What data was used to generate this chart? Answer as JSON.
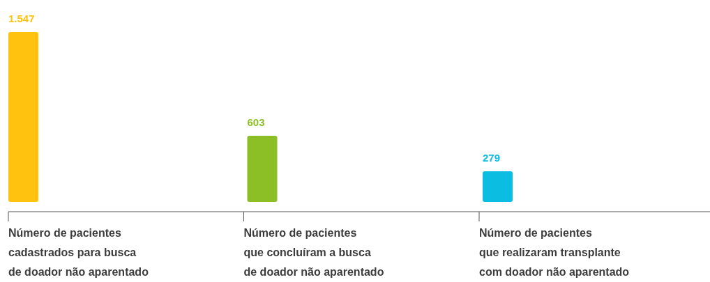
{
  "chart_data": {
    "type": "bar",
    "categories": [
      "Número de pacientes\ncadastrados para busca\nde doador não aparentado",
      "Número de pacientes\nque concluíram a busca\nde doador não aparentado",
      "Número de pacientes\nque realizaram transplante\ncom doador não aparentado"
    ],
    "values": [
      1547,
      603,
      279
    ],
    "value_labels": [
      "1.547",
      "603",
      "279"
    ],
    "colors": [
      "#ffc20e",
      "#8cbf26",
      "#0bbde0"
    ]
  }
}
